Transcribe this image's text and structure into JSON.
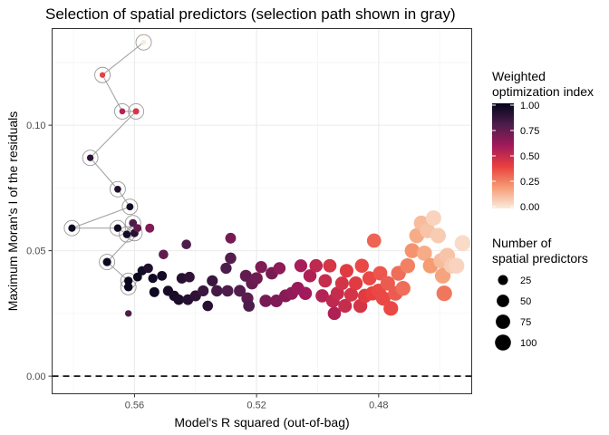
{
  "chart_data": {
    "type": "scatter",
    "title": "Selection of spatial predictors (selection path shown in gray)",
    "xlabel": "Model's R squared (out-of-bag)",
    "ylabel": "Maximum Moran's I of the residuals",
    "x_reversed": true,
    "xlim": [
      0.587,
      0.4495
    ],
    "ylim": [
      -0.007,
      0.1385
    ],
    "x_ticks": [
      0.56,
      0.52,
      0.48
    ],
    "x_tick_labels": [
      "0.56",
      "0.52",
      "0.48"
    ],
    "y_ticks": [
      0.0,
      0.05,
      0.1
    ],
    "y_tick_labels": [
      "0.00",
      "0.05",
      "0.10"
    ],
    "reference_line": {
      "y": 0.0,
      "style": "dashed"
    },
    "grid": true,
    "color_legend": {
      "title_line1": "Weighted",
      "title_line2": "optimization index",
      "ticks": [
        "1.00",
        "0.75",
        "0.50",
        "0.25",
        "0.00"
      ],
      "ramp": [
        "#03051a",
        "#4c1d4b",
        "#a11a5b",
        "#e83f3f",
        "#f69c73",
        "#faebdd"
      ]
    },
    "size_legend": {
      "title_line1": "Number of",
      "title_line2": "spatial predictors",
      "entries": [
        25,
        50,
        75,
        100
      ]
    },
    "path": [
      [
        0.557,
        0.133
      ],
      [
        0.5705,
        0.12
      ],
      [
        0.564,
        0.1055
      ],
      [
        0.5595,
        0.1055
      ],
      [
        0.5745,
        0.087
      ],
      [
        0.5655,
        0.0745
      ],
      [
        0.5615,
        0.0675
      ],
      [
        0.5805,
        0.059
      ],
      [
        0.5655,
        0.059
      ],
      [
        0.5625,
        0.0565
      ],
      [
        0.5605,
        0.061
      ],
      [
        0.56,
        0.057
      ],
      [
        0.569,
        0.0455
      ],
      [
        0.562,
        0.038
      ],
      [
        0.562,
        0.0355
      ]
    ],
    "points": [
      [
        0.557,
        0.133,
        1,
        0.0
      ],
      [
        0.5705,
        0.12,
        2,
        0.4
      ],
      [
        0.564,
        0.1055,
        3,
        0.55
      ],
      [
        0.5595,
        0.1055,
        4,
        0.45
      ],
      [
        0.5745,
        0.087,
        5,
        0.88
      ],
      [
        0.5655,
        0.0745,
        6,
        0.92
      ],
      [
        0.5615,
        0.0675,
        7,
        0.95
      ],
      [
        0.5805,
        0.059,
        8,
        0.97
      ],
      [
        0.5655,
        0.059,
        9,
        0.96
      ],
      [
        0.5625,
        0.0565,
        10,
        0.95
      ],
      [
        0.5605,
        0.061,
        11,
        0.8
      ],
      [
        0.56,
        0.057,
        12,
        0.9
      ],
      [
        0.569,
        0.0455,
        13,
        0.97
      ],
      [
        0.562,
        0.038,
        14,
        0.98
      ],
      [
        0.562,
        0.0355,
        15,
        0.98
      ],
      [
        0.562,
        0.025,
        5,
        0.8
      ],
      [
        0.559,
        0.059,
        11,
        0.75
      ],
      [
        0.5575,
        0.042,
        20,
        0.95
      ],
      [
        0.5555,
        0.043,
        22,
        0.92
      ],
      [
        0.559,
        0.0395,
        17,
        0.97
      ],
      [
        0.555,
        0.059,
        18,
        0.68
      ],
      [
        0.554,
        0.039,
        20,
        0.96
      ],
      [
        0.5505,
        0.0485,
        22,
        0.75
      ],
      [
        0.551,
        0.04,
        23,
        0.95
      ],
      [
        0.5535,
        0.0335,
        25,
        0.97
      ],
      [
        0.549,
        0.034,
        27,
        0.94
      ],
      [
        0.547,
        0.032,
        28,
        0.94
      ],
      [
        0.5455,
        0.0305,
        30,
        0.93
      ],
      [
        0.5445,
        0.039,
        30,
        0.9
      ],
      [
        0.543,
        0.0525,
        22,
        0.8
      ],
      [
        0.5425,
        0.0305,
        32,
        0.9
      ],
      [
        0.542,
        0.0395,
        30,
        0.88
      ],
      [
        0.54,
        0.032,
        34,
        0.88
      ],
      [
        0.5375,
        0.034,
        35,
        0.85
      ],
      [
        0.536,
        0.028,
        30,
        0.9
      ],
      [
        0.5345,
        0.038,
        35,
        0.85
      ],
      [
        0.533,
        0.034,
        38,
        0.82
      ],
      [
        0.53,
        0.043,
        36,
        0.8
      ],
      [
        0.5295,
        0.034,
        40,
        0.8
      ],
      [
        0.5285,
        0.047,
        38,
        0.78
      ],
      [
        0.5285,
        0.055,
        32,
        0.7
      ],
      [
        0.5255,
        0.034,
        43,
        0.78
      ],
      [
        0.5235,
        0.04,
        44,
        0.75
      ],
      [
        0.523,
        0.031,
        45,
        0.76
      ],
      [
        0.5225,
        0.028,
        40,
        0.8
      ],
      [
        0.5215,
        0.037,
        47,
        0.74
      ],
      [
        0.52,
        0.039,
        48,
        0.72
      ],
      [
        0.5185,
        0.0435,
        45,
        0.68
      ],
      [
        0.517,
        0.03,
        50,
        0.7
      ],
      [
        0.515,
        0.041,
        50,
        0.7
      ],
      [
        0.5135,
        0.03,
        52,
        0.68
      ],
      [
        0.5125,
        0.043,
        48,
        0.65
      ],
      [
        0.5105,
        0.032,
        54,
        0.66
      ],
      [
        0.5085,
        0.033,
        55,
        0.64
      ],
      [
        0.5065,
        0.035,
        56,
        0.62
      ],
      [
        0.5055,
        0.044,
        55,
        0.58
      ],
      [
        0.504,
        0.033,
        58,
        0.6
      ],
      [
        0.5025,
        0.04,
        58,
        0.56
      ],
      [
        0.5005,
        0.044,
        60,
        0.52
      ],
      [
        0.4985,
        0.032,
        60,
        0.55
      ],
      [
        0.4975,
        0.038,
        62,
        0.5
      ],
      [
        0.496,
        0.044,
        62,
        0.45
      ],
      [
        0.495,
        0.03,
        64,
        0.52
      ],
      [
        0.4945,
        0.025,
        60,
        0.56
      ],
      [
        0.4935,
        0.033,
        64,
        0.5
      ],
      [
        0.492,
        0.037,
        65,
        0.46
      ],
      [
        0.491,
        0.028,
        66,
        0.5
      ],
      [
        0.4905,
        0.042,
        66,
        0.42
      ],
      [
        0.489,
        0.0325,
        68,
        0.46
      ],
      [
        0.4875,
        0.037,
        68,
        0.42
      ],
      [
        0.486,
        0.028,
        70,
        0.46
      ],
      [
        0.4855,
        0.044,
        70,
        0.38
      ],
      [
        0.4845,
        0.032,
        72,
        0.42
      ],
      [
        0.483,
        0.039,
        72,
        0.38
      ],
      [
        0.482,
        0.033,
        74,
        0.4
      ],
      [
        0.4815,
        0.054,
        74,
        0.32
      ],
      [
        0.48,
        0.034,
        76,
        0.38
      ],
      [
        0.4795,
        0.041,
        76,
        0.35
      ],
      [
        0.4785,
        0.031,
        78,
        0.38
      ],
      [
        0.477,
        0.037,
        78,
        0.34
      ],
      [
        0.476,
        0.027,
        80,
        0.38
      ],
      [
        0.4745,
        0.033,
        80,
        0.34
      ],
      [
        0.4735,
        0.041,
        82,
        0.3
      ],
      [
        0.472,
        0.035,
        82,
        0.3
      ],
      [
        0.4705,
        0.044,
        84,
        0.26
      ],
      [
        0.469,
        0.05,
        84,
        0.22
      ],
      [
        0.4675,
        0.056,
        86,
        0.16
      ],
      [
        0.466,
        0.061,
        86,
        0.12
      ],
      [
        0.465,
        0.049,
        88,
        0.16
      ],
      [
        0.464,
        0.058,
        88,
        0.1
      ],
      [
        0.463,
        0.044,
        90,
        0.2
      ],
      [
        0.462,
        0.063,
        90,
        0.06
      ],
      [
        0.4605,
        0.056,
        92,
        0.08
      ],
      [
        0.4595,
        0.046,
        92,
        0.12
      ],
      [
        0.459,
        0.04,
        94,
        0.18
      ],
      [
        0.4585,
        0.033,
        94,
        0.28
      ],
      [
        0.4575,
        0.048,
        96,
        0.1
      ],
      [
        0.456,
        0.044,
        96,
        0.08
      ],
      [
        0.4545,
        0.044,
        98,
        0.06
      ],
      [
        0.4525,
        0.053,
        100,
        0.04
      ]
    ]
  }
}
